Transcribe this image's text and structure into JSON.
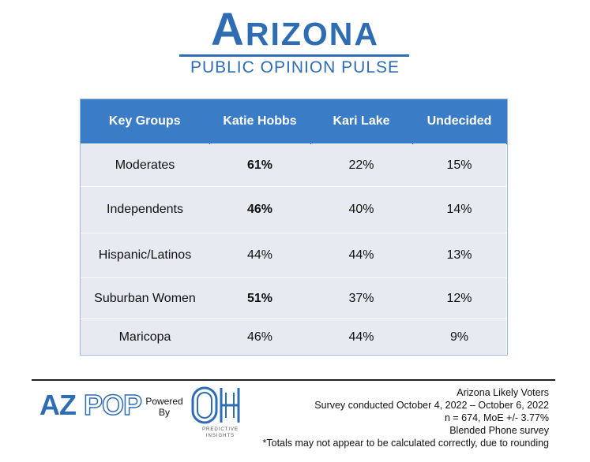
{
  "header": {
    "title": "Arizona",
    "subtitle": "PUBLIC OPINION PULSE"
  },
  "chart_data": {
    "type": "table",
    "columns": [
      "Key Groups",
      "Katie Hobbs",
      "Kari Lake",
      "Undecided"
    ],
    "rows": [
      {
        "group": "Moderates",
        "hobbs": "61%",
        "lake": "22%",
        "undecided": "15%",
        "hobbs_bold": true
      },
      {
        "group": "Independents",
        "hobbs": "46%",
        "lake": "40%",
        "undecided": "14%",
        "hobbs_bold": true
      },
      {
        "group": "Hispanic/Latinos",
        "hobbs": "44%",
        "lake": "44%",
        "undecided": "13%",
        "hobbs_bold": false
      },
      {
        "group": "Suburban Women",
        "hobbs": "51%",
        "lake": "37%",
        "undecided": "12%",
        "hobbs_bold": true
      },
      {
        "group": "Maricopa",
        "hobbs": "46%",
        "lake": "44%",
        "undecided": "9%",
        "hobbs_bold": false
      }
    ]
  },
  "footer": {
    "logo_azpop": "AZPOP",
    "powered_line1": "Powered",
    "powered_line2": "By",
    "oh_logo": "OH",
    "oh_tagline": "PREDICTIVE INSIGHTS",
    "notes": [
      "Arizona Likely Voters",
      "Survey conducted October 4, 2022 – October 6, 2022",
      "n = 674, MoE +/- 3.77%",
      "Blended Phone survey",
      "*Totals may not appear to be calculated correctly, due to rounding"
    ]
  },
  "colors": {
    "brand_blue": "#2e6db4",
    "header_blue": "#3b7cc7",
    "row_bg": "#e7eaf0"
  }
}
